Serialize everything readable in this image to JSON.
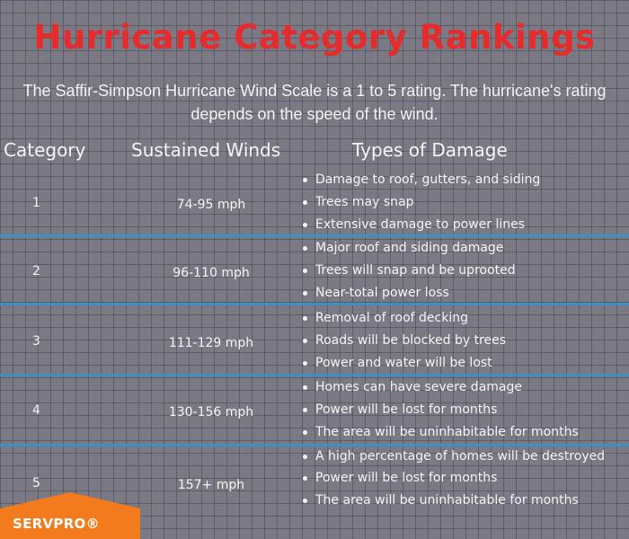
{
  "title": "Hurricane Category Rankings",
  "subtitle": "The Saffir-Simpson Hurricane Wind Scale is a 1 to 5 rating. The hurricane's rating depends on the speed of the wind.",
  "headers": {
    "category": "Category",
    "winds": "Sustained Winds",
    "damage": "Types of Damage"
  },
  "rows": [
    {
      "category": "1",
      "winds": "74-95 mph",
      "damage": [
        "Damage to roof, gutters, and siding",
        "Trees may snap",
        "Extensive damage to power lines"
      ]
    },
    {
      "category": "2",
      "winds": "96-110 mph",
      "damage": [
        "Major roof and siding damage",
        "Trees will snap and be uprooted",
        "Near-total power loss"
      ]
    },
    {
      "category": "3",
      "winds": "111-129 mph",
      "damage": [
        "Removal of roof decking",
        "Roads will be blocked by trees",
        "Power and water will be lost"
      ]
    },
    {
      "category": "4",
      "winds": "130-156 mph",
      "damage": [
        "Homes can have severe damage",
        "Power will be lost for months",
        "The area will be uninhabitable for months"
      ]
    },
    {
      "category": "5",
      "winds": "157+ mph",
      "damage": [
        "A high percentage of homes will be destroyed",
        "Power will be lost for months",
        "The area will be uninhabitable for months"
      ]
    }
  ],
  "logo": {
    "text": "SERVPRO®"
  },
  "colors": {
    "title": "#e52b2b",
    "divider": "#3d8fc4",
    "logo": "#f27b1d"
  }
}
